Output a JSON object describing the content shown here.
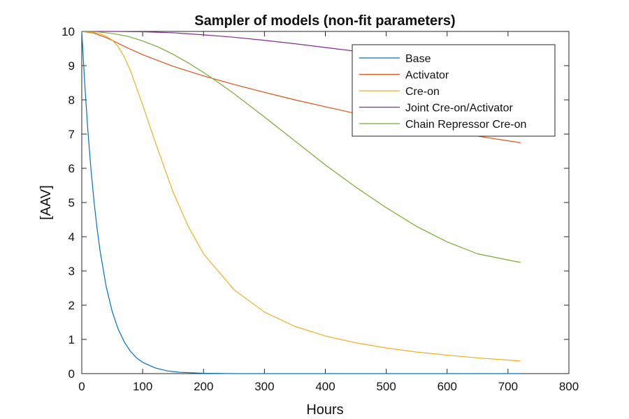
{
  "chart_data": {
    "type": "line",
    "title": "Sampler of models (non-fit parameters)",
    "xlabel": "Hours",
    "ylabel": "[AAV]",
    "xlim": [
      0,
      800
    ],
    "ylim": [
      0,
      10
    ],
    "xticks": [
      0,
      100,
      200,
      300,
      400,
      500,
      600,
      700,
      800
    ],
    "yticks": [
      0,
      1,
      2,
      3,
      4,
      5,
      6,
      7,
      8,
      9,
      10
    ],
    "grid": false,
    "legend_position": "top-right",
    "series": [
      {
        "name": "Base",
        "color": "#0072BD",
        "x": [
          0,
          5,
          10,
          15,
          20,
          25,
          30,
          40,
          50,
          60,
          70,
          80,
          90,
          100,
          120,
          140,
          160,
          200,
          250,
          300,
          400,
          500,
          600,
          720
        ],
        "y": [
          10,
          8.43,
          7.11,
          5.99,
          5.05,
          4.26,
          3.59,
          2.55,
          1.81,
          1.29,
          0.92,
          0.65,
          0.46,
          0.33,
          0.17,
          0.08,
          0.04,
          0.01,
          0.0,
          0.0,
          0.0,
          0.0,
          0.0,
          0.0
        ]
      },
      {
        "name": "Activator",
        "color": "#D95319",
        "x": [
          0,
          20,
          40,
          50,
          60,
          80,
          100,
          150,
          200,
          250,
          300,
          350,
          400,
          450,
          500,
          550,
          600,
          650,
          720
        ],
        "y": [
          10,
          9.95,
          9.82,
          9.74,
          9.65,
          9.48,
          9.32,
          8.98,
          8.7,
          8.45,
          8.22,
          8.0,
          7.8,
          7.6,
          7.42,
          7.25,
          7.09,
          6.94,
          6.75
        ]
      },
      {
        "name": "Cre-on",
        "color": "#EDB120",
        "x": [
          0,
          20,
          30,
          40,
          50,
          60,
          70,
          80,
          100,
          120,
          150,
          175,
          200,
          250,
          300,
          350,
          400,
          450,
          500,
          550,
          600,
          650,
          720
        ],
        "y": [
          10,
          9.97,
          9.93,
          9.86,
          9.75,
          9.55,
          9.25,
          8.85,
          7.85,
          6.8,
          5.3,
          4.3,
          3.5,
          2.45,
          1.8,
          1.38,
          1.1,
          0.9,
          0.75,
          0.63,
          0.54,
          0.46,
          0.37
        ]
      },
      {
        "name": "Joint Cre-on/Activator",
        "color": "#7E2F8E",
        "x": [
          0,
          50,
          100,
          150,
          200,
          250,
          300,
          350,
          400,
          450,
          470
        ],
        "y": [
          10,
          10.0,
          9.99,
          9.96,
          9.9,
          9.83,
          9.74,
          9.64,
          9.53,
          9.42,
          9.37
        ]
      },
      {
        "name": "Chain Repressor Cre-on",
        "color": "#77AC30",
        "x": [
          0,
          25,
          50,
          75,
          100,
          125,
          150,
          175,
          200,
          225,
          250,
          300,
          350,
          400,
          450,
          500,
          550,
          600,
          650,
          720
        ],
        "y": [
          10,
          9.99,
          9.94,
          9.86,
          9.72,
          9.55,
          9.33,
          9.08,
          8.8,
          8.5,
          8.18,
          7.5,
          6.8,
          6.1,
          5.45,
          4.85,
          4.3,
          3.85,
          3.5,
          3.25
        ]
      }
    ]
  }
}
